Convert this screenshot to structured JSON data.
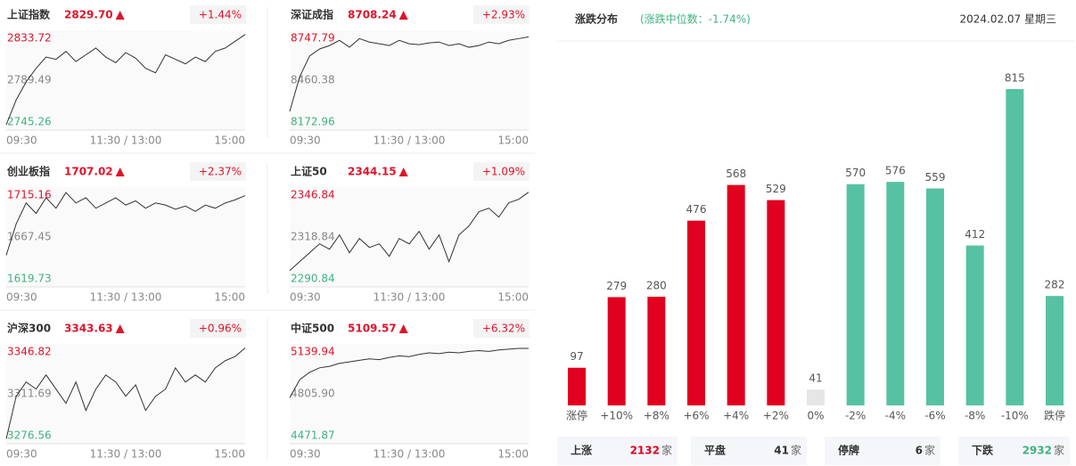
{
  "chart_data": [
    {
      "type": "line",
      "title": "上证指数",
      "price": "2829.70",
      "change": "+1.44%",
      "color": "#333333",
      "ylim": [
        2745.26,
        2833.72
      ],
      "yticks": [
        2833.72,
        2789.49,
        2745.26
      ],
      "xticks": [
        "09:30",
        "11:30 / 13:00",
        "15:00"
      ],
      "values": [
        2750,
        2772,
        2788,
        2800,
        2810,
        2808,
        2815,
        2806,
        2812,
        2818,
        2810,
        2805,
        2814,
        2809,
        2800,
        2796,
        2812,
        2808,
        2804,
        2810,
        2806,
        2815,
        2818,
        2824,
        2830
      ]
    },
    {
      "type": "line",
      "title": "深证成指",
      "price": "8708.24",
      "change": "+2.93%",
      "color": "#333333",
      "ylim": [
        8172.96,
        8747.79
      ],
      "yticks": [
        8747.79,
        8460.38,
        8172.96
      ],
      "xticks": [
        "09:30",
        "11:30 / 13:00",
        "15:00"
      ],
      "values": [
        8280,
        8480,
        8600,
        8640,
        8660,
        8690,
        8650,
        8700,
        8680,
        8670,
        8660,
        8690,
        8670,
        8665,
        8675,
        8680,
        8660,
        8670,
        8650,
        8660,
        8680,
        8670,
        8690,
        8700,
        8710
      ]
    },
    {
      "type": "line",
      "title": "创业板指",
      "price": "1707.02",
      "change": "+2.37%",
      "color": "#333333",
      "ylim": [
        1619.73,
        1715.16
      ],
      "yticks": [
        1715.16,
        1667.45,
        1619.73
      ],
      "xticks": [
        "09:30",
        "11:30 / 13:00",
        "15:00"
      ],
      "values": [
        1650,
        1680,
        1700,
        1690,
        1705,
        1695,
        1710,
        1700,
        1705,
        1695,
        1700,
        1705,
        1698,
        1702,
        1695,
        1700,
        1698,
        1694,
        1697,
        1692,
        1698,
        1695,
        1700,
        1703,
        1707
      ]
    },
    {
      "type": "line",
      "title": "上证50",
      "price": "2344.15",
      "change": "+1.09%",
      "color": "#333333",
      "ylim": [
        2290.84,
        2346.84
      ],
      "yticks": [
        2346.84,
        2318.84,
        2290.84
      ],
      "xticks": [
        "09:30",
        "11:30 / 13:00",
        "15:00"
      ],
      "values": [
        2300,
        2305,
        2310,
        2315,
        2312,
        2320,
        2310,
        2318,
        2313,
        2315,
        2308,
        2318,
        2315,
        2322,
        2312,
        2320,
        2305,
        2320,
        2325,
        2333,
        2335,
        2330,
        2338,
        2340,
        2344
      ]
    },
    {
      "type": "line",
      "title": "沪深300",
      "price": "3343.63",
      "change": "+0.96%",
      "color": "#333333",
      "ylim": [
        3276.56,
        3346.82
      ],
      "yticks": [
        3346.82,
        3311.69,
        3276.56
      ],
      "xticks": [
        "09:30",
        "11:30 / 13:00",
        "15:00"
      ],
      "values": [
        3280,
        3310,
        3320,
        3315,
        3325,
        3315,
        3305,
        3320,
        3300,
        3315,
        3325,
        3320,
        3310,
        3318,
        3300,
        3310,
        3315,
        3330,
        3320,
        3325,
        3320,
        3330,
        3335,
        3338,
        3344
      ]
    },
    {
      "type": "line",
      "title": "中证500",
      "price": "5109.57",
      "change": "+6.32%",
      "color": "#333333",
      "ylim": [
        4471.87,
        5139.94
      ],
      "yticks": [
        5139.94,
        {
          "value": 4805.9,
          "label": "4805.90"
        },
        4471.87
      ],
      "xticks": [
        "09:30",
        "11:30 / 13:00",
        "15:00"
      ],
      "values": [
        4780,
        4900,
        4950,
        4980,
        4990,
        5010,
        5020,
        5030,
        5040,
        5035,
        5050,
        5060,
        5055,
        5070,
        5080,
        5075,
        5085,
        5080,
        5090,
        5095,
        5090,
        5100,
        5105,
        5110,
        5110
      ]
    },
    {
      "type": "bar",
      "title": "涨跌分布",
      "subtitle": "(涨跌中位数：-1.74%)",
      "date": "2024.02.07 星期三",
      "categories": [
        "涨停",
        "+10%",
        "+8%",
        "+6%",
        "+4%",
        "+2%",
        "0%",
        "-2%",
        "-4%",
        "-6%",
        "-8%",
        "-10%",
        "跌停"
      ],
      "values": [
        97,
        279,
        280,
        476,
        568,
        529,
        41,
        570,
        576,
        559,
        412,
        815,
        282
      ],
      "colors": [
        "#e0001f",
        "#e0001f",
        "#e0001f",
        "#e0001f",
        "#e0001f",
        "#e0001f",
        "#e6e6e6",
        "#56c2a2",
        "#56c2a2",
        "#56c2a2",
        "#56c2a2",
        "#56c2a2",
        "#56c2a2"
      ]
    }
  ],
  "summary": [
    {
      "label": "上涨",
      "value": 2132,
      "unit": "家",
      "color": "#e0001f"
    },
    {
      "label": "平盘",
      "value": 41,
      "unit": "家",
      "color": "#333333"
    },
    {
      "label": "停牌",
      "value": 6,
      "unit": "家",
      "color": "#333333"
    },
    {
      "label": "下跌",
      "value": 2932,
      "unit": "家",
      "color": "#3fb27f"
    }
  ]
}
